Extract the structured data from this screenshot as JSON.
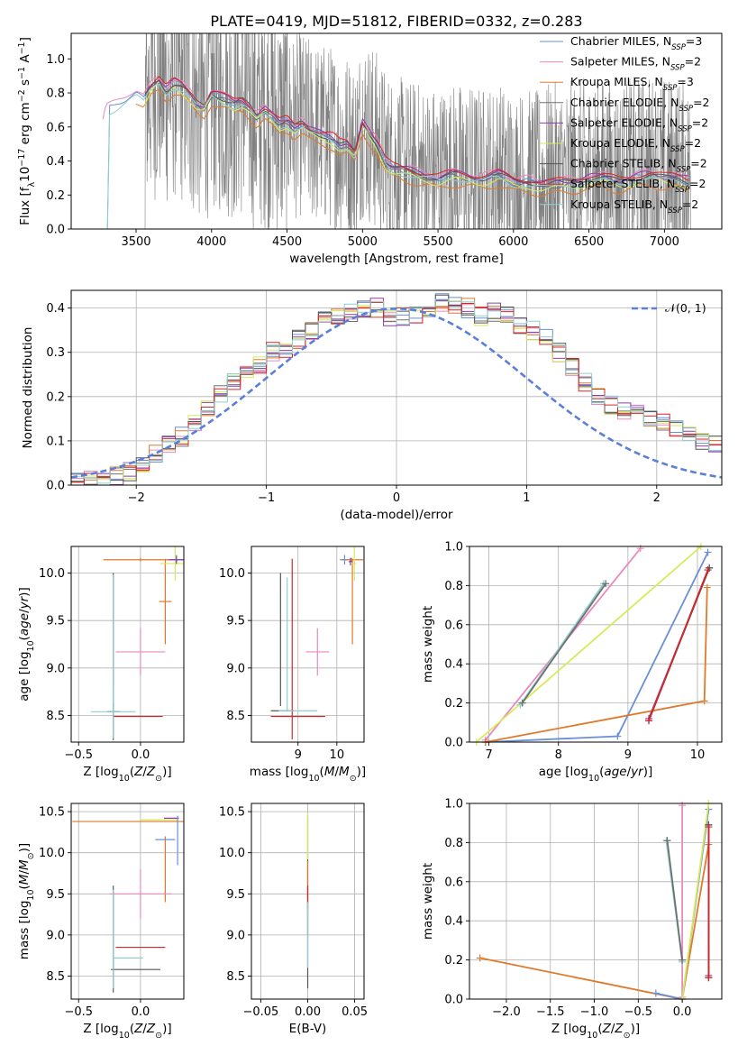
{
  "figure": {
    "title": "PLATE=0419, MJD=51812, FIBERID=0332, z=0.283"
  },
  "chart_data": [
    {
      "type": "line",
      "id": "spectrum",
      "xlabel": "wavelength [Angstrom, rest frame]",
      "ylabel": "Flux [f_λ 10^-17 erg cm^-2 s^-1 A^-1]",
      "xlim": [
        3070,
        7380
      ],
      "ylim": [
        0,
        1.15
      ],
      "xticks": [
        3500,
        4000,
        4500,
        5000,
        5500,
        6000,
        6500,
        7000
      ],
      "yticks": [
        0.0,
        0.2,
        0.4,
        0.6,
        0.8,
        1.0
      ],
      "grid": false,
      "legend_position": "upper right",
      "data_color": "#808080",
      "series": [
        {
          "name": "Chabrier MILES, N_SSP=3",
          "color": "#6a8fd8"
        },
        {
          "name": "Salpeter MILES, N_SSP=2",
          "color": "#e88ac0"
        },
        {
          "name": "Kroupa MILES, N_SSP=3",
          "color": "#e07a2a"
        },
        {
          "name": "Chabrier ELODIE, N_SSP=2",
          "color": "#707070"
        },
        {
          "name": "Salpeter ELODIE, N_SSP=2",
          "color": "#8e3cab"
        },
        {
          "name": "Kroupa ELODIE, N_SSP=2",
          "color": "#d6ea5a"
        },
        {
          "name": "Chabrier STELIB, N_SSP=2",
          "color": "#555555"
        },
        {
          "name": "Salpeter STELIB, N_SSP=2",
          "color": "#d62728"
        },
        {
          "name": "Kroupa STELIB, N_SSP=2",
          "color": "#8ecfd0"
        }
      ],
      "model_x": [
        3280,
        3300,
        3350,
        3400,
        3450,
        3500,
        3550,
        3600,
        3650,
        3700,
        3750,
        3800,
        3850,
        3900,
        3950,
        4000,
        4050,
        4100,
        4150,
        4200,
        4250,
        4300,
        4350,
        4400,
        4450,
        4500,
        4550,
        4600,
        4650,
        4700,
        4750,
        4800,
        4850,
        4900,
        4950,
        5000,
        5050,
        5100,
        5150,
        5200,
        5300,
        5400,
        5500,
        5600,
        5700,
        5800,
        5900,
        6000,
        6100,
        6200,
        6300,
        6400,
        6500,
        6600,
        6700,
        6800,
        6900,
        7000,
        7100,
        7170
      ],
      "model_y": [
        0.62,
        0.7,
        0.72,
        0.75,
        0.78,
        0.8,
        0.76,
        0.84,
        0.88,
        0.82,
        0.86,
        0.84,
        0.8,
        0.74,
        0.72,
        0.8,
        0.78,
        0.76,
        0.74,
        0.76,
        0.72,
        0.66,
        0.7,
        0.66,
        0.62,
        0.64,
        0.6,
        0.62,
        0.58,
        0.56,
        0.55,
        0.54,
        0.5,
        0.5,
        0.44,
        0.62,
        0.56,
        0.5,
        0.4,
        0.36,
        0.34,
        0.32,
        0.3,
        0.32,
        0.31,
        0.3,
        0.32,
        0.28,
        0.28,
        0.26,
        0.27,
        0.28,
        0.3,
        0.3,
        0.28,
        0.3,
        0.32,
        0.3,
        0.3,
        0.28
      ]
    },
    {
      "type": "histogram",
      "id": "residuals",
      "xlabel": "(data-model)/error",
      "ylabel": "Normed distribution",
      "xlim": [
        -2.5,
        2.5
      ],
      "ylim": [
        0,
        0.44
      ],
      "xticks": [
        -2,
        -1,
        0,
        1,
        2
      ],
      "yticks": [
        0.0,
        0.1,
        0.2,
        0.3,
        0.4
      ],
      "grid": true,
      "legend": "𝒩(0, 1)",
      "legend_position": "upper right",
      "bin_width": 0.1,
      "approx_heights": [
        0.01,
        0.01,
        0.01,
        0.02,
        0.03,
        0.05,
        0.07,
        0.09,
        0.11,
        0.14,
        0.17,
        0.21,
        0.23,
        0.25,
        0.27,
        0.3,
        0.31,
        0.33,
        0.35,
        0.37,
        0.38,
        0.39,
        0.4,
        0.4,
        0.38,
        0.38,
        0.38,
        0.4,
        0.41,
        0.41,
        0.4,
        0.38,
        0.39,
        0.38,
        0.36,
        0.35,
        0.33,
        0.3,
        0.27,
        0.23,
        0.2,
        0.18,
        0.17,
        0.16,
        0.15,
        0.14,
        0.13,
        0.12,
        0.1,
        0.09
      ]
    },
    {
      "type": "scatter",
      "id": "z-vs-age",
      "xlabel": "Z [log10(Z/Z⊙)]",
      "ylabel": "age [log10(age/yr)]",
      "xlim": [
        -0.56,
        0.35
      ],
      "ylim": [
        8.22,
        10.28
      ],
      "xticks": [
        -0.5,
        0.0
      ],
      "yticks": [
        8.5,
        9.0,
        9.5,
        10.0
      ],
      "grid": true,
      "errorbars": [
        {
          "color": "#6a8fd8",
          "x": 0.29,
          "y": 10.14,
          "xerr": 0.08,
          "yerr": 0.05
        },
        {
          "color": "#e07a2a",
          "x": 0.0,
          "y": 10.14,
          "xerr": 0.3,
          "yerr": 0.02
        },
        {
          "color": "#e07a2a",
          "x": 0.2,
          "y": 9.7,
          "xerr": 0.05,
          "yerr": 0.45
        },
        {
          "color": "#e88ac0",
          "x": 0.0,
          "y": 9.17,
          "xerr": 0.2,
          "yerr": 0.25
        },
        {
          "color": "#d6ea5a",
          "x": 0.28,
          "y": 10.1,
          "xerr": 0.12,
          "yerr": 0.18
        },
        {
          "color": "#8e3cab",
          "x": 0.29,
          "y": 10.14,
          "xerr": 0.06,
          "yerr": 0.04
        },
        {
          "color": "#555555",
          "x": -0.22,
          "y": 8.54,
          "xerr": 0.05,
          "yerr": 0.3
        },
        {
          "color": "#555555",
          "x": -0.22,
          "y": 9.3,
          "xerr": 0.0,
          "yerr": 0.7
        },
        {
          "color": "#d62728",
          "x": -0.02,
          "y": 8.49,
          "xerr": 0.2,
          "yerr": 0.0
        },
        {
          "color": "#8ecfd0",
          "x": -0.22,
          "y": 8.54,
          "xerr": 0.18,
          "yerr": 0.28
        },
        {
          "color": "#8ecfd0",
          "x": -0.22,
          "y": 9.3,
          "xerr": 0.0,
          "yerr": 0.68
        }
      ]
    },
    {
      "type": "scatter",
      "id": "mass-vs-age",
      "xlabel": "mass [log10(M/M⊙)]",
      "ylabel": "",
      "xlim": [
        7.8,
        10.7
      ],
      "ylim": [
        8.22,
        10.28
      ],
      "xticks": [
        9,
        10
      ],
      "yticks": [
        8.5,
        9.0,
        9.5,
        10.0
      ],
      "grid": true,
      "errorbars": [
        {
          "color": "#e07a2a",
          "x": 10.38,
          "y": 10.14,
          "xerr": 0.3,
          "yerr": 0.02
        },
        {
          "color": "#e07a2a",
          "x": 10.4,
          "y": 9.7,
          "xerr": 0.0,
          "yerr": 0.45
        },
        {
          "color": "#6a8fd8",
          "x": 10.2,
          "y": 10.14,
          "xerr": 0.08,
          "yerr": 0.05
        },
        {
          "color": "#e88ac0",
          "x": 9.5,
          "y": 9.17,
          "xerr": 0.3,
          "yerr": 0.25
        },
        {
          "color": "#d6ea5a",
          "x": 10.45,
          "y": 10.1,
          "xerr": 0.05,
          "yerr": 0.18
        },
        {
          "color": "#8e3cab",
          "x": 10.35,
          "y": 10.12,
          "xerr": 0.05,
          "yerr": 0.04
        },
        {
          "color": "#555555",
          "x": 8.55,
          "y": 9.3,
          "xerr": 0.0,
          "yerr": 0.7
        },
        {
          "color": "#555555",
          "x": 8.6,
          "y": 8.55,
          "xerr": 0.3,
          "yerr": 0.0
        },
        {
          "color": "#d62728",
          "x": 8.85,
          "y": 9.2,
          "xerr": 0.0,
          "yerr": 0.95
        },
        {
          "color": "#d62728",
          "x": 9.0,
          "y": 8.49,
          "xerr": 0.7,
          "yerr": 0.0
        },
        {
          "color": "#8ecfd0",
          "x": 8.72,
          "y": 9.25,
          "xerr": 0.0,
          "yerr": 0.7
        },
        {
          "color": "#8ecfd0",
          "x": 9.0,
          "y": 8.55,
          "xerr": 0.5,
          "yerr": 0.0
        }
      ]
    },
    {
      "type": "line",
      "id": "age-vs-mass-weight",
      "xlabel": "age [log10(age/yr)]",
      "ylabel": "mass weight",
      "xlim": [
        6.72,
        10.35
      ],
      "ylim": [
        0,
        1.0
      ],
      "xticks": [
        7,
        8,
        9,
        10
      ],
      "yticks": [
        0.0,
        0.2,
        0.4,
        0.6,
        0.8,
        1.0
      ],
      "grid": true,
      "series": [
        {
          "color": "#6a8fd8",
          "x": [
            6.95,
            8.85,
            10.15
          ],
          "y": [
            0.0,
            0.03,
            0.97
          ]
        },
        {
          "color": "#e88ac0",
          "x": [
            6.95,
            9.18
          ],
          "y": [
            0.01,
            0.99
          ]
        },
        {
          "color": "#e07a2a",
          "x": [
            6.95,
            10.1,
            10.14
          ],
          "y": [
            0.0,
            0.21,
            0.79
          ]
        },
        {
          "color": "#d6ea5a",
          "x": [
            6.82,
            10.05
          ],
          "y": [
            0.0,
            1.0
          ]
        },
        {
          "color": "#8e3cab",
          "x": [
            9.3,
            10.17
          ],
          "y": [
            0.12,
            0.89
          ]
        },
        {
          "color": "#555555",
          "x": [
            9.3,
            10.17
          ],
          "y": [
            0.11,
            0.89
          ]
        },
        {
          "color": "#d62728",
          "x": [
            9.3,
            10.15
          ],
          "y": [
            0.11,
            0.88
          ]
        },
        {
          "color": "#8ecfd0",
          "x": [
            7.45,
            8.65
          ],
          "y": [
            0.19,
            0.81
          ]
        },
        {
          "color": "#707070",
          "x": [
            7.48,
            8.68
          ],
          "y": [
            0.2,
            0.81
          ]
        }
      ]
    },
    {
      "type": "scatter",
      "id": "z-vs-mass",
      "xlabel": "Z [log10(Z/Z⊙)]",
      "ylabel": "mass [log10(M/M⊙)]",
      "xlim": [
        -0.56,
        0.35
      ],
      "ylim": [
        8.22,
        10.6
      ],
      "xticks": [
        -0.5,
        0.0
      ],
      "yticks": [
        8.5,
        9.0,
        9.5,
        10.0,
        10.5
      ],
      "grid": true,
      "errorbars": [
        {
          "color": "#e07a2a",
          "x": -0.1,
          "y": 10.38,
          "xerr": 0.45,
          "yerr": 0.0
        },
        {
          "color": "#e07a2a",
          "x": 0.2,
          "y": 9.8,
          "xerr": 0.0,
          "yerr": 0.4
        },
        {
          "color": "#d6ea5a",
          "x": 0.15,
          "y": 10.4,
          "xerr": 0.15,
          "yerr": 0.0
        },
        {
          "color": "#8e3cab",
          "x": 0.25,
          "y": 10.42,
          "xerr": 0.06,
          "yerr": 0.0
        },
        {
          "color": "#6a8fd8",
          "x": 0.2,
          "y": 10.16,
          "xerr": 0.08,
          "yerr": 0.0
        },
        {
          "color": "#6a8fd8",
          "x": 0.3,
          "y": 10.15,
          "xerr": 0.0,
          "yerr": 0.3
        },
        {
          "color": "#e88ac0",
          "x": 0.0,
          "y": 9.5,
          "xerr": 0.25,
          "yerr": 0.3
        },
        {
          "color": "#555555",
          "x": -0.22,
          "y": 8.95,
          "xerr": 0.0,
          "yerr": 0.65
        },
        {
          "color": "#555555",
          "x": -0.04,
          "y": 8.58,
          "xerr": 0.2,
          "yerr": 0.0
        },
        {
          "color": "#d62728",
          "x": 0.0,
          "y": 8.85,
          "xerr": 0.2,
          "yerr": 0.0
        },
        {
          "color": "#8ecfd0",
          "x": -0.22,
          "y": 8.95,
          "xerr": 0.0,
          "yerr": 0.6
        },
        {
          "color": "#8ecfd0",
          "x": -0.1,
          "y": 8.72,
          "xerr": 0.12,
          "yerr": 0.0
        }
      ]
    },
    {
      "type": "scatter",
      "id": "ebv-vs-mass",
      "xlabel": "E(B-V)",
      "ylabel": "",
      "xlim": [
        -0.06,
        0.06
      ],
      "ylim": [
        8.22,
        10.6
      ],
      "xticks": [
        -0.05,
        0.0,
        0.05
      ],
      "yticks": [
        8.5,
        9.0,
        9.5,
        10.0,
        10.5
      ],
      "grid": true,
      "errorbars": [
        {
          "color": "#555555",
          "x": 0.0,
          "y": 9.4,
          "xerr": 0.0,
          "yerr": 1.05
        },
        {
          "color": "#d6ea5a",
          "x": 0.0,
          "y": 10.2,
          "xerr": 0.0,
          "yerr": 0.28
        },
        {
          "color": "#e07a2a",
          "x": 0.0,
          "y": 9.6,
          "xerr": 0.0,
          "yerr": 0.3
        },
        {
          "color": "#d62728",
          "x": 0.0,
          "y": 9.3,
          "xerr": 0.0,
          "yerr": 0.3
        },
        {
          "color": "#8ecfd0",
          "x": 0.0,
          "y": 9.0,
          "xerr": 0.0,
          "yerr": 0.4
        }
      ]
    },
    {
      "type": "line",
      "id": "z-vs-mass-weight",
      "xlabel": "Z [log10(Z/Z⊙)]",
      "ylabel": "mass weight",
      "xlim": [
        -2.42,
        0.45
      ],
      "ylim": [
        0,
        1.0
      ],
      "xticks": [
        -2.0,
        -1.5,
        -1.0,
        -0.5,
        0.0
      ],
      "yticks": [
        0.0,
        0.2,
        0.4,
        0.6,
        0.8,
        1.0
      ],
      "grid": true,
      "series": [
        {
          "color": "#e07a2a",
          "x": [
            -2.3,
            0.0,
            0.3
          ],
          "y": [
            0.21,
            0.0,
            0.79
          ]
        },
        {
          "color": "#6a8fd8",
          "x": [
            -0.3,
            0.0,
            0.3
          ],
          "y": [
            0.03,
            0.0,
            0.97
          ]
        },
        {
          "color": "#e88ac0",
          "x": [
            0.0,
            0.0
          ],
          "y": [
            0.01,
            0.99
          ]
        },
        {
          "color": "#d6ea5a",
          "x": [
            0.0,
            0.3
          ],
          "y": [
            0.0,
            1.0
          ]
        },
        {
          "color": "#8e3cab",
          "x": [
            0.3,
            0.3
          ],
          "y": [
            0.12,
            0.89
          ]
        },
        {
          "color": "#555555",
          "x": [
            0.3,
            0.3
          ],
          "y": [
            0.11,
            0.89
          ]
        },
        {
          "color": "#d62728",
          "x": [
            0.3,
            0.3
          ],
          "y": [
            0.11,
            0.88
          ]
        },
        {
          "color": "#8ecfd0",
          "x": [
            -0.18,
            0.0
          ],
          "y": [
            0.81,
            0.19
          ]
        },
        {
          "color": "#707070",
          "x": [
            -0.17,
            0.0
          ],
          "y": [
            0.81,
            0.2
          ]
        }
      ]
    }
  ]
}
